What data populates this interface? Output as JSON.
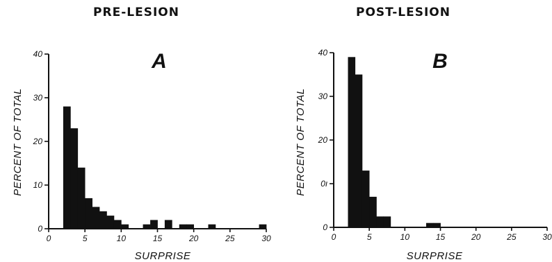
{
  "chart_data": [
    {
      "type": "bar",
      "title": "PRE-LESION",
      "panel_label": "A",
      "xlabel": "SURPRISE",
      "ylabel": "PERCENT OF TOTAL",
      "xlim": [
        0,
        30
      ],
      "ylim": [
        0,
        40
      ],
      "xticks": [
        "0",
        "5",
        "10",
        "15",
        "20",
        "25",
        "30"
      ],
      "yticks": [
        "0",
        "10",
        "20",
        "30",
        "40"
      ],
      "bin_width": 1,
      "grid": false,
      "bins": [
        {
          "start": 2,
          "value": 28
        },
        {
          "start": 3,
          "value": 23
        },
        {
          "start": 4,
          "value": 14
        },
        {
          "start": 5,
          "value": 7
        },
        {
          "start": 6,
          "value": 5
        },
        {
          "start": 7,
          "value": 4
        },
        {
          "start": 8,
          "value": 3
        },
        {
          "start": 9,
          "value": 2
        },
        {
          "start": 10,
          "value": 1
        },
        {
          "start": 13,
          "value": 1
        },
        {
          "start": 14,
          "value": 2
        },
        {
          "start": 16,
          "value": 2
        },
        {
          "start": 18,
          "value": 1
        },
        {
          "start": 19,
          "value": 1
        },
        {
          "start": 22,
          "value": 1
        },
        {
          "start": 29,
          "value": 1
        }
      ]
    },
    {
      "type": "bar",
      "title": "POST-LESION",
      "panel_label": "B",
      "xlabel": "SURPRISE",
      "ylabel": "PERCENT OF TOTAL",
      "xlim": [
        0,
        30
      ],
      "ylim": [
        0,
        40
      ],
      "xticks": [
        "0",
        "5",
        "10",
        "15",
        "20",
        "25",
        "30"
      ],
      "yticks": [
        "0",
        "ו0",
        "20",
        "30",
        "40"
      ],
      "bin_width": 1,
      "grid": false,
      "bins": [
        {
          "start": 2,
          "value": 39
        },
        {
          "start": 3,
          "value": 35
        },
        {
          "start": 4,
          "value": 13
        },
        {
          "start": 5,
          "value": 7
        },
        {
          "start": 6,
          "value": 2.5
        },
        {
          "start": 7,
          "value": 2.5
        },
        {
          "start": 13,
          "value": 1
        },
        {
          "start": 14,
          "value": 1
        }
      ]
    }
  ]
}
